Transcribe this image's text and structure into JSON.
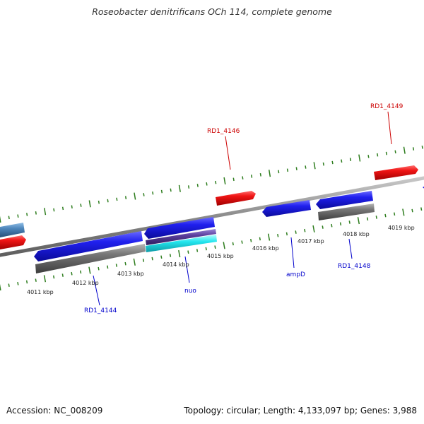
{
  "title": "Roseobacter denitrificans OCh 114, complete genome",
  "footer": {
    "accession": "Accession: NC_008209",
    "topology": "Topology: circular; Length: 4,133,097 bp; Genes: 3,988"
  },
  "colors": {
    "background": "#ffffff",
    "backbone": "#888888",
    "tick": "#2e7d1e",
    "forward_gene": "#1c1cdd",
    "reverse_gene": "#ee1111",
    "rna_gene": "#4d86bb",
    "cds_feature": "#6b6b6b",
    "other_feature": "#22e6ee",
    "purple_feature": "#5a3d9c",
    "label_blue": "#0000cc",
    "label_red": "#cc0000"
  },
  "scale_labels": [
    "4011 kbp",
    "4012 kbp",
    "4013 kbp",
    "4014 kbp",
    "4015 kbp",
    "4016 kbp",
    "4017 kbp",
    "4018 kbp",
    "4019 kbp"
  ],
  "gene_labels": [
    {
      "text": "RD1_4146",
      "color": "red"
    },
    {
      "text": "RD1_4149",
      "color": "red"
    },
    {
      "text": "RD1_4144",
      "color": "blue"
    },
    {
      "text": "nuo",
      "color": "blue"
    },
    {
      "text": "ampD",
      "color": "blue"
    },
    {
      "text": "RD1_4148",
      "color": "blue"
    }
  ]
}
